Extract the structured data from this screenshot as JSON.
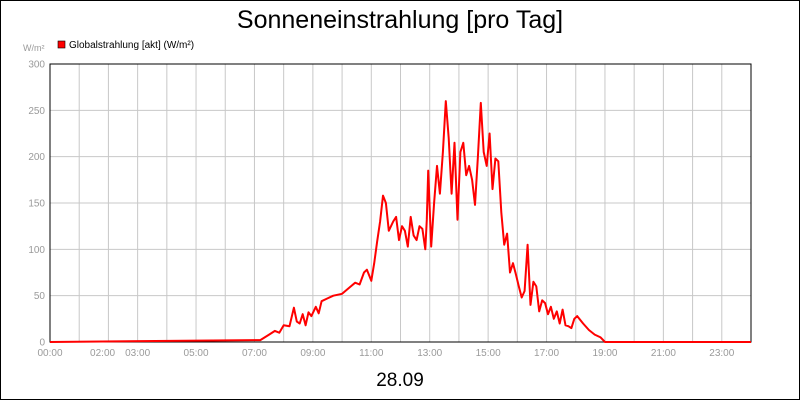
{
  "chart_data": {
    "type": "line",
    "title": "Sonneneinstrahlung [pro Tag]",
    "date_label": "28.09",
    "ylabel": "W/m²",
    "ylim": [
      0,
      300
    ],
    "xlim": [
      0,
      24
    ],
    "grid": true,
    "legend_position": "top-left",
    "y_ticks": [
      "0",
      "50",
      "100",
      "150",
      "200",
      "250",
      "300"
    ],
    "x_ticks": [
      {
        "label": "00:00",
        "x": 0
      },
      {
        "label": "02:00",
        "x": 1.8
      },
      {
        "label": "03:00",
        "x": 3.0
      },
      {
        "label": "05:00",
        "x": 5.0
      },
      {
        "label": "07:00",
        "x": 7.0
      },
      {
        "label": "09:00",
        "x": 9.0
      },
      {
        "label": "11:00",
        "x": 11.0
      },
      {
        "label": "13:00",
        "x": 13.0
      },
      {
        "label": "15:00",
        "x": 15.0
      },
      {
        "label": "17:00",
        "x": 17.0
      },
      {
        "label": "19:00",
        "x": 19.0
      },
      {
        "label": "21:00",
        "x": 21.0
      },
      {
        "label": "23:00",
        "x": 23.0
      }
    ],
    "series": [
      {
        "name": "Globalstrahlung [akt] (W/m²)",
        "color": "#ff0000",
        "x": [
          0,
          7.2,
          7.5,
          7.7,
          7.85,
          8.0,
          8.2,
          8.35,
          8.45,
          8.55,
          8.65,
          8.75,
          8.85,
          8.95,
          9.1,
          9.2,
          9.3,
          9.5,
          9.7,
          10.0,
          10.3,
          10.45,
          10.6,
          10.75,
          10.85,
          11.0,
          11.1,
          11.2,
          11.3,
          11.4,
          11.5,
          11.6,
          11.75,
          11.85,
          11.95,
          12.05,
          12.15,
          12.25,
          12.35,
          12.45,
          12.55,
          12.65,
          12.75,
          12.85,
          12.9,
          12.95,
          13.05,
          13.15,
          13.25,
          13.35,
          13.45,
          13.55,
          13.65,
          13.75,
          13.85,
          13.95,
          14.05,
          14.15,
          14.25,
          14.35,
          14.45,
          14.55,
          14.65,
          14.75,
          14.85,
          14.95,
          15.05,
          15.15,
          15.25,
          15.35,
          15.45,
          15.55,
          15.65,
          15.75,
          15.85,
          15.95,
          16.05,
          16.15,
          16.25,
          16.35,
          16.45,
          16.55,
          16.65,
          16.75,
          16.85,
          16.95,
          17.05,
          17.15,
          17.25,
          17.35,
          17.45,
          17.55,
          17.65,
          17.75,
          17.85,
          17.95,
          18.05,
          18.25,
          18.45,
          18.65,
          18.85,
          19.0,
          19.2,
          19.5,
          24
        ],
        "values": [
          0,
          2,
          8,
          12,
          10,
          18,
          17,
          37,
          22,
          20,
          30,
          18,
          32,
          28,
          38,
          31,
          44,
          47,
          50,
          52,
          60,
          64,
          62,
          75,
          78,
          66,
          85,
          108,
          130,
          158,
          150,
          120,
          130,
          135,
          110,
          125,
          120,
          103,
          135,
          115,
          110,
          125,
          122,
          100,
          132,
          185,
          103,
          150,
          190,
          160,
          205,
          260,
          220,
          160,
          215,
          132,
          205,
          215,
          180,
          190,
          175,
          148,
          200,
          258,
          205,
          190,
          225,
          165,
          198,
          195,
          140,
          105,
          117,
          75,
          85,
          73,
          60,
          48,
          55,
          105,
          40,
          65,
          60,
          33,
          45,
          42,
          30,
          38,
          25,
          33,
          20,
          35,
          18,
          17,
          15,
          25,
          28,
          20,
          13,
          8,
          5,
          0,
          0,
          0,
          0
        ]
      }
    ]
  }
}
